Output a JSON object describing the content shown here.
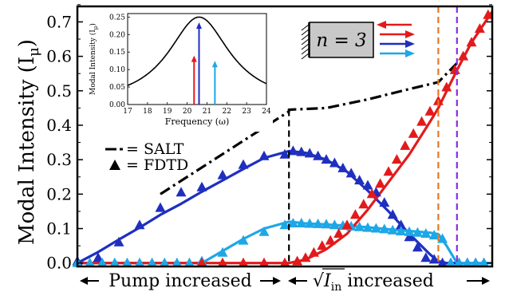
{
  "chart_data": {
    "type": "line",
    "ylabel": "Modal Intensity (I",
    "ylabel_sub": "μ",
    "ylabel_tail": ")",
    "ylim": [
      -0.01,
      0.745
    ],
    "yticks": [
      0.0,
      0.1,
      0.2,
      0.3,
      0.4,
      0.5,
      0.6,
      0.7
    ],
    "ytick_labels": [
      "0.0",
      "0.1",
      "0.2",
      "0.3",
      "0.4",
      "0.5",
      "0.6",
      "0.7"
    ],
    "xlim": [
      0,
      100
    ],
    "legend": {
      "placement": "middle-left",
      "salt_label": "=  SALT",
      "fdtd_label": "=  FDTD"
    },
    "box_label": "n = 3",
    "regions": [
      {
        "label": "Pump increased"
      },
      {
        "label_prefix": "√",
        "label_var": "I",
        "label_sub": "in",
        "label_suffix": " increased"
      }
    ],
    "vlines": [
      {
        "x": 51,
        "color": "#000000",
        "style": "dashed"
      },
      {
        "x": 87,
        "color": "#e87722",
        "style": "dashed"
      },
      {
        "x": 91.5,
        "color": "#8a2be2",
        "style": "dashed"
      }
    ],
    "series": [
      {
        "kind": "salt",
        "color": "#000000",
        "style": "dashdot",
        "x": [
          20,
          51,
          51,
          60,
          70,
          80,
          87,
          91.5
        ],
        "y": [
          0.2,
          0.44,
          0.445,
          0.45,
          0.475,
          0.505,
          0.525,
          0.58
        ]
      },
      {
        "kind": "salt",
        "color": "#1f2fbf",
        "style": "solid",
        "x": [
          0,
          5,
          10,
          15,
          20,
          25,
          30,
          35,
          40,
          45,
          51,
          55,
          60,
          65,
          70,
          75,
          80,
          85,
          87,
          89,
          91.5
        ],
        "y": [
          0.0,
          0.032,
          0.068,
          0.103,
          0.14,
          0.172,
          0.207,
          0.24,
          0.273,
          0.305,
          0.325,
          0.32,
          0.3,
          0.265,
          0.21,
          0.15,
          0.085,
          0.025,
          0.005,
          0.0,
          0.0
        ]
      },
      {
        "kind": "salt",
        "color": "#1ea7e6",
        "style": "solid",
        "x": [
          0,
          5,
          10,
          15,
          20,
          30,
          35,
          40,
          45,
          51,
          55,
          60,
          65,
          70,
          75,
          80,
          85,
          87,
          89,
          91.5,
          100
        ],
        "y": [
          0.0,
          0.0,
          0.0,
          0.0,
          0.0,
          0.0,
          0.035,
          0.07,
          0.1,
          0.12,
          0.115,
          0.112,
          0.108,
          0.104,
          0.098,
          0.093,
          0.088,
          0.084,
          0.05,
          0.0,
          0.0
        ]
      },
      {
        "kind": "salt",
        "color": "#e31a1c",
        "style": "solid",
        "x": [
          0,
          51,
          55,
          60,
          65,
          70,
          75,
          80,
          85,
          87,
          91.5,
          95,
          100
        ],
        "y": [
          0.0,
          0.0,
          0.01,
          0.04,
          0.085,
          0.155,
          0.235,
          0.315,
          0.41,
          0.45,
          0.56,
          0.64,
          0.73
        ]
      },
      {
        "kind": "fdtd",
        "color": "#1f2fbf",
        "x": [
          0,
          5,
          10,
          15,
          20,
          25,
          30,
          35,
          40,
          45,
          50,
          52,
          54,
          56,
          58,
          60,
          62,
          64,
          66,
          68,
          70,
          72,
          74,
          76,
          78,
          80,
          82,
          84,
          86,
          88,
          90,
          92,
          94,
          96,
          98
        ],
        "y": [
          0.005,
          0.015,
          0.06,
          0.11,
          0.16,
          0.205,
          0.22,
          0.255,
          0.285,
          0.31,
          0.315,
          0.325,
          0.322,
          0.318,
          0.31,
          0.3,
          0.29,
          0.275,
          0.26,
          0.24,
          0.225,
          0.205,
          0.175,
          0.14,
          0.11,
          0.075,
          0.045,
          0.015,
          0.01,
          0.0,
          0.0,
          0.0,
          0.0,
          0.0,
          0.0
        ]
      },
      {
        "kind": "fdtd",
        "color": "#1ea7e6",
        "x": [
          0,
          3,
          6,
          9,
          12,
          15,
          18,
          21,
          24,
          27,
          30,
          35,
          40,
          45,
          50,
          52,
          54,
          56,
          58,
          60,
          62,
          64,
          66,
          68,
          70,
          72,
          74,
          76,
          78,
          80,
          82,
          84,
          86,
          88,
          90,
          92,
          94,
          96,
          98
        ],
        "y": [
          0.0,
          0.0,
          0.0,
          0.0,
          0.0,
          0.0,
          0.0,
          0.0,
          0.0,
          0.0,
          0.005,
          0.03,
          0.065,
          0.09,
          0.11,
          0.115,
          0.115,
          0.114,
          0.113,
          0.112,
          0.11,
          0.108,
          0.106,
          0.104,
          0.102,
          0.1,
          0.098,
          0.095,
          0.092,
          0.09,
          0.088,
          0.085,
          0.08,
          0.07,
          0.0,
          0.0,
          0.0,
          0.0,
          0.0
        ]
      },
      {
        "kind": "fdtd",
        "color": "#e31a1c",
        "x": [
          30,
          35,
          40,
          45,
          50,
          53,
          55,
          57,
          59,
          61,
          63,
          65,
          67,
          69,
          71,
          73,
          75,
          77,
          79,
          81,
          83,
          85,
          87,
          89,
          91,
          93,
          95,
          97,
          99
        ],
        "y": [
          0.0,
          0.0,
          0.0,
          0.0,
          0.0,
          0.005,
          0.015,
          0.03,
          0.05,
          0.065,
          0.085,
          0.11,
          0.14,
          0.17,
          0.2,
          0.23,
          0.265,
          0.3,
          0.34,
          0.375,
          0.41,
          0.44,
          0.47,
          0.51,
          0.56,
          0.6,
          0.64,
          0.68,
          0.72
        ]
      }
    ],
    "inset": {
      "xlabel": "Frequency (ω)",
      "ylabel": "Modal Intensity (I",
      "ylabel_sub": "μ",
      "ylabel_tail": ")",
      "xlim": [
        17,
        24
      ],
      "ylim": [
        0,
        0.26
      ],
      "xticks": [
        17,
        18,
        19,
        20,
        21,
        22,
        23,
        24
      ],
      "yticks": [
        0.0,
        0.05,
        0.1,
        0.15,
        0.2,
        0.25
      ],
      "ytick_labels": [
        "0.00",
        "0.05",
        "0.10",
        "0.15",
        "0.20",
        "0.25"
      ],
      "curve_center": 20.6,
      "curve_peak": 0.25,
      "curve_width": 1.9,
      "arrows": [
        {
          "x": 20.35,
          "y": 0.14,
          "color": "#e31a1c"
        },
        {
          "x": 20.6,
          "y": 0.235,
          "color": "#1f2fbf"
        },
        {
          "x": 21.4,
          "y": 0.125,
          "color": "#1ea7e6"
        }
      ]
    },
    "box_arrows": [
      {
        "color": "#e31a1c",
        "direction": "left"
      },
      {
        "color": "#e31a1c",
        "direction": "right"
      },
      {
        "color": "#1f2fbf",
        "direction": "right"
      },
      {
        "color": "#1ea7e6",
        "direction": "right"
      }
    ]
  }
}
